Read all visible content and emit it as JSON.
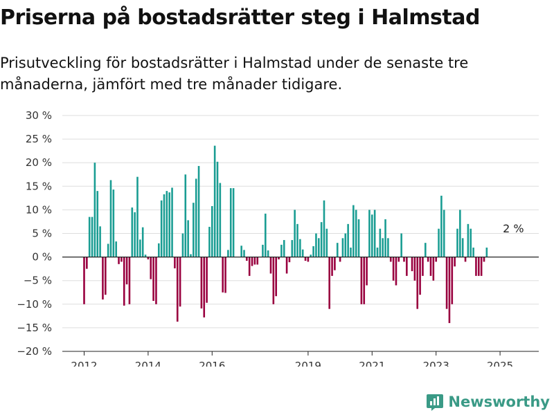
{
  "title": "Priserna på bostadsrätter steg i Halmstad",
  "subtitle": "Prisutveckling för bostadsrätter i Halmstad under de senaste tre månaderna, jämfört med tre månader tidigare.",
  "brand": {
    "name": "Newsworthy",
    "icon": "newsworthy-logo-icon"
  },
  "colors": {
    "positive": "#1a9d93",
    "negative": "#99003f",
    "grid": "#dddddd",
    "axis": "#222222"
  },
  "chart_data": {
    "type": "bar",
    "x_start": "2012-01",
    "interval": "month",
    "ylim": [
      -20,
      30
    ],
    "y_ticks": [
      30,
      25,
      20,
      15,
      10,
      5,
      0,
      -5,
      -10,
      -15,
      -20
    ],
    "y_tick_labels": [
      "30 %",
      "25 %",
      "20 %",
      "15 %",
      "10 %",
      "5 %",
      "0 %",
      "−5 %",
      "−10 %",
      "−15 %",
      "−20 %"
    ],
    "x_ticks": [
      "2012",
      "2014",
      "2016",
      "2019",
      "2021",
      "2023",
      "2025"
    ],
    "grid": true,
    "annotation": {
      "label": "2 %",
      "x": "2025-06",
      "value": 2
    },
    "values": [
      -10,
      -2.5,
      8.5,
      8.5,
      20,
      14,
      6.5,
      -9,
      -8,
      2.8,
      16.3,
      14.3,
      3.3,
      -1.5,
      -1,
      -10.3,
      -5.8,
      -10,
      10.5,
      9.5,
      17,
      3.7,
      6.3,
      0.5,
      -0.5,
      -4.7,
      -9.3,
      -10,
      2.9,
      12,
      13.3,
      14,
      13.7,
      14.7,
      -2.4,
      -13.7,
      -10.5,
      5,
      17.5,
      7.8,
      0.6,
      11.5,
      16.6,
      19.3,
      -10.9,
      -12.8,
      -9.7,
      6.4,
      10.8,
      23.6,
      20.2,
      15.7,
      -7.5,
      -7.6,
      1.5,
      14.6,
      14.6,
      0,
      0,
      2.4,
      1.5,
      -0.8,
      -4,
      -1.9,
      -1.6,
      -1.6,
      0,
      2.6,
      9.2,
      1.4,
      -3.5,
      -10,
      -8.3,
      -0.5,
      2.6,
      3.6,
      -3.5,
      -1.1,
      3.6,
      10,
      7,
      3.8,
      1.6,
      -0.8,
      -1,
      0.5,
      2.3,
      5,
      4,
      7.4,
      12,
      6,
      -11,
      -4,
      -2.8,
      3,
      -1,
      4,
      5,
      7,
      2,
      11,
      10,
      8,
      -10,
      -10,
      -6,
      10,
      9,
      10,
      2,
      6,
      4,
      8,
      4,
      -1,
      -5,
      -6,
      -1,
      5,
      -1,
      -4,
      0,
      -3,
      -5,
      -11,
      -8,
      -4,
      3,
      -1,
      -4,
      -5,
      -1,
      6,
      13,
      10,
      -11,
      -14,
      -10,
      -2,
      6,
      10,
      4,
      -1,
      7,
      6,
      2,
      -4,
      -4,
      -4,
      -1,
      2
    ]
  }
}
